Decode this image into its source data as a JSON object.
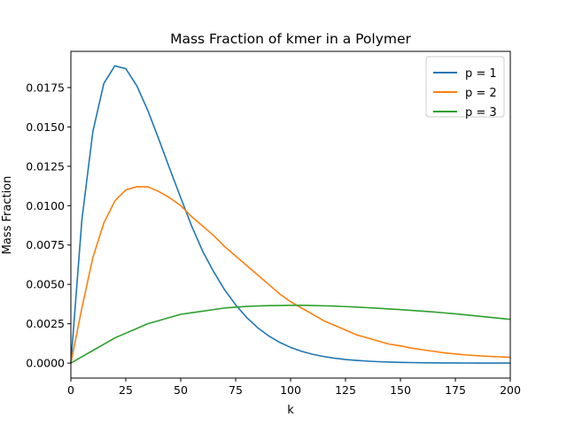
{
  "chart_data": {
    "type": "line",
    "title": "Mass Fraction of kmer in a Polymer",
    "xlabel": "k",
    "ylabel": "Mass Fraction",
    "xlim": [
      0,
      200
    ],
    "ylim": [
      -0.00095,
      0.0198
    ],
    "xticks": [
      0,
      25,
      50,
      75,
      100,
      125,
      150,
      175,
      200
    ],
    "xtick_labels": [
      "0",
      "25",
      "50",
      "75",
      "100",
      "125",
      "150",
      "175",
      "200"
    ],
    "yticks": [
      0.0,
      0.0025,
      0.005,
      0.0075,
      0.01,
      0.0125,
      0.015,
      0.0175
    ],
    "ytick_labels": [
      "0.0000",
      "0.0025",
      "0.0050",
      "0.0075",
      "0.0100",
      "0.0125",
      "0.0150",
      "0.0175"
    ],
    "grid": false,
    "legend_position": "top-right",
    "x": [
      0,
      5,
      10,
      15,
      20,
      25,
      30,
      35,
      40,
      45,
      50,
      55,
      60,
      65,
      70,
      75,
      80,
      85,
      90,
      95,
      100,
      105,
      110,
      115,
      120,
      125,
      130,
      135,
      140,
      145,
      150,
      155,
      160,
      165,
      170,
      175,
      180,
      185,
      190,
      195,
      200
    ],
    "series": [
      {
        "name": "p = 1",
        "color": "#1f77b4",
        "values": [
          0.0,
          0.00909,
          0.0147,
          0.01776,
          0.01888,
          0.0187,
          0.01762,
          0.01605,
          0.01423,
          0.01234,
          0.0105,
          0.0087,
          0.0071,
          0.0058,
          0.00465,
          0.0037,
          0.0029,
          0.00225,
          0.00173,
          0.00132,
          0.001,
          0.00075,
          0.00056,
          0.00042,
          0.00031,
          0.00023,
          0.00017,
          0.000125,
          9e-05,
          6.5e-05,
          4.7e-05,
          3.4e-05,
          2.4e-05,
          1.7e-05,
          1.2e-05,
          8.7e-06,
          6.2e-06,
          4.4e-06,
          3.1e-06,
          2.2e-06,
          1.6e-06
        ]
      },
      {
        "name": "p = 2",
        "color": "#ff7f0e",
        "values": [
          0.0,
          0.0035,
          0.0067,
          0.0089,
          0.0103,
          0.011,
          0.0112,
          0.0112,
          0.0109,
          0.0105,
          0.01,
          0.0093,
          0.0087,
          0.0081,
          0.0074,
          0.0068,
          0.0062,
          0.0056,
          0.005,
          0.0044,
          0.0039,
          0.0035,
          0.0031,
          0.0027,
          0.0024,
          0.0021,
          0.0018,
          0.0016,
          0.0014,
          0.0012,
          0.0011,
          0.00095,
          0.00085,
          0.00075,
          0.00065,
          0.00058,
          0.00052,
          0.00047,
          0.00043,
          0.0004,
          0.00037
        ]
      },
      {
        "name": "p = 3",
        "color": "#2ca02c",
        "values": [
          0.0,
          0.0004,
          0.0008,
          0.0012,
          0.0016,
          0.0019,
          0.0022,
          0.0025,
          0.0027,
          0.0029,
          0.0031,
          0.0032,
          0.0033,
          0.0034,
          0.0035,
          0.00355,
          0.0036,
          0.00363,
          0.00365,
          0.00366,
          0.00367,
          0.00367,
          0.00366,
          0.00364,
          0.00362,
          0.00359,
          0.00356,
          0.00352,
          0.00348,
          0.00344,
          0.0034,
          0.00335,
          0.0033,
          0.00325,
          0.00319,
          0.00313,
          0.00306,
          0.00299,
          0.00292,
          0.00285,
          0.00278
        ]
      }
    ]
  }
}
